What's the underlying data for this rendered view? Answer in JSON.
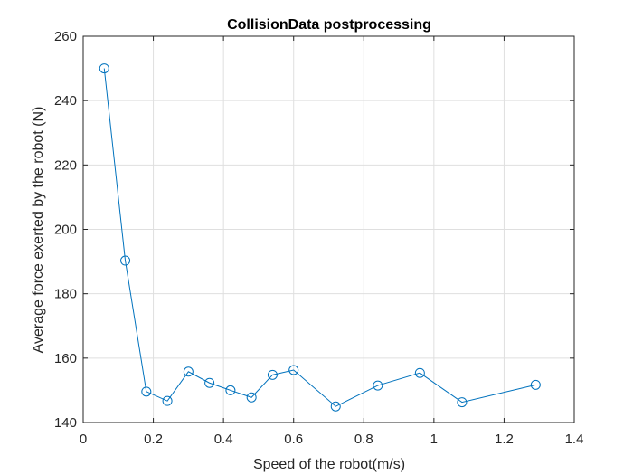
{
  "chart_data": {
    "type": "line",
    "title": "CollisionData postprocessing",
    "xlabel": "Speed of the robot(m/s)",
    "ylabel": "Average force exerted by the robot (N)",
    "xlim": [
      0,
      1.4
    ],
    "ylim": [
      140,
      260
    ],
    "xticks": [
      0,
      0.2,
      0.4,
      0.6,
      0.8,
      1,
      1.2,
      1.4
    ],
    "xtick_labels": [
      "0",
      "0.2",
      "0.4",
      "0.6",
      "0.8",
      "1",
      "1.2",
      "1.4"
    ],
    "yticks": [
      140,
      160,
      180,
      200,
      220,
      240,
      260
    ],
    "ytick_labels": [
      "140",
      "160",
      "180",
      "200",
      "220",
      "240",
      "260"
    ],
    "grid": true,
    "marker": "circle",
    "series": [
      {
        "x": [
          0.06,
          0.12,
          0.18,
          0.24,
          0.3,
          0.36,
          0.42,
          0.48,
          0.54,
          0.6,
          0.72,
          0.84,
          0.96,
          1.08,
          1.29
        ],
        "y": [
          250,
          190.3,
          149.6,
          146.7,
          155.8,
          152.3,
          150.0,
          147.8,
          154.8,
          156.3,
          145.0,
          151.5,
          155.4,
          146.3,
          151.7
        ],
        "color": "#0072BD"
      }
    ]
  }
}
